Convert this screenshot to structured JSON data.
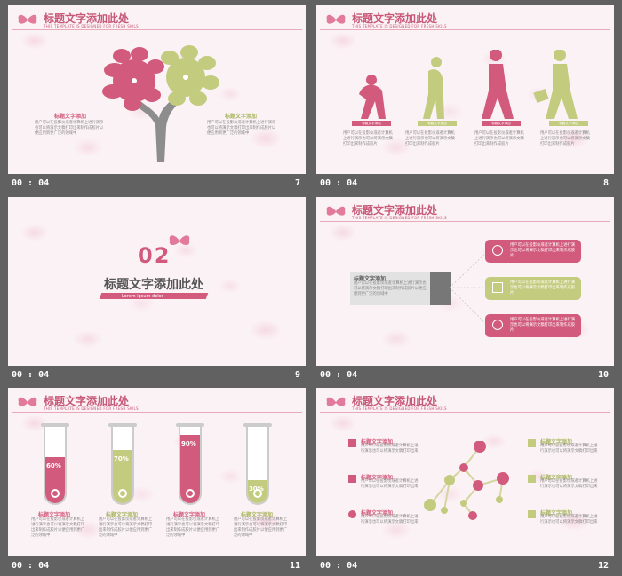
{
  "header": {
    "title": "标题文字添加此处",
    "subtitle": "THIS TEMPLATE IS DESIGNED FOR FRESH SKILS"
  },
  "colors": {
    "pink": "#d25a7c",
    "green": "#c3cc7e",
    "bg": "#616161"
  },
  "slides": [
    {
      "time": "00 : 04",
      "num": "7",
      "left_title": "标题文字添加",
      "left_text": "用户可以在投影仪或者计算机上进行演示也可以将演示文稿打印出来制作成胶片以便应用到更广泛的领域中",
      "right_title": "标题文字添加",
      "right_text": "用户可以在投影仪或者计算机上进行演示也可以将演示文稿打印出来制作成胶片以便应用到更广泛的领域中"
    },
    {
      "time": "00 : 04",
      "num": "8",
      "labels": [
        "标题文字添加",
        "标题文字添加",
        "标题文字添加",
        "标题文字添加"
      ],
      "text": "用户可以在投影仪或者计算机上进行演示也可以将演示文稿打印出来制作成胶片"
    },
    {
      "time": "00 : 04",
      "num": "9",
      "big_num": "02",
      "section_title": "标题文字添加此处",
      "lorem": "Lorem ipsum dolor"
    },
    {
      "time": "00 : 04",
      "num": "10",
      "box_title": "标题文字添加",
      "box_text": "用户可以在投影仪或者计算机上进行演示也可以将演示文稿打印出来制作成胶片以便应用到更广泛的领域中",
      "card_text": "用户可以在投影仪或者计算机上进行演示也可以将演示文稿打印出来制作成胶片"
    },
    {
      "time": "00 : 04",
      "num": "11",
      "tubes": [
        {
          "pct": "60%",
          "level": 0.6,
          "color": "pink"
        },
        {
          "pct": "70%",
          "level": 0.7,
          "color": "green"
        },
        {
          "pct": "90%",
          "level": 0.9,
          "color": "pink"
        },
        {
          "pct": "30%",
          "level": 0.3,
          "color": "green"
        }
      ],
      "title": "标题文字添加",
      "text": "用户可以在投影仪或者计算机上进行演示也可以将演示文稿打印出来制作成胶片以便应用到更广泛的领域中"
    },
    {
      "time": "00 : 04",
      "num": "12",
      "title": "标题文字添加",
      "text": "用户可以在投影仪或者计算机上进行演示也可以将演示文稿打印出来"
    }
  ]
}
